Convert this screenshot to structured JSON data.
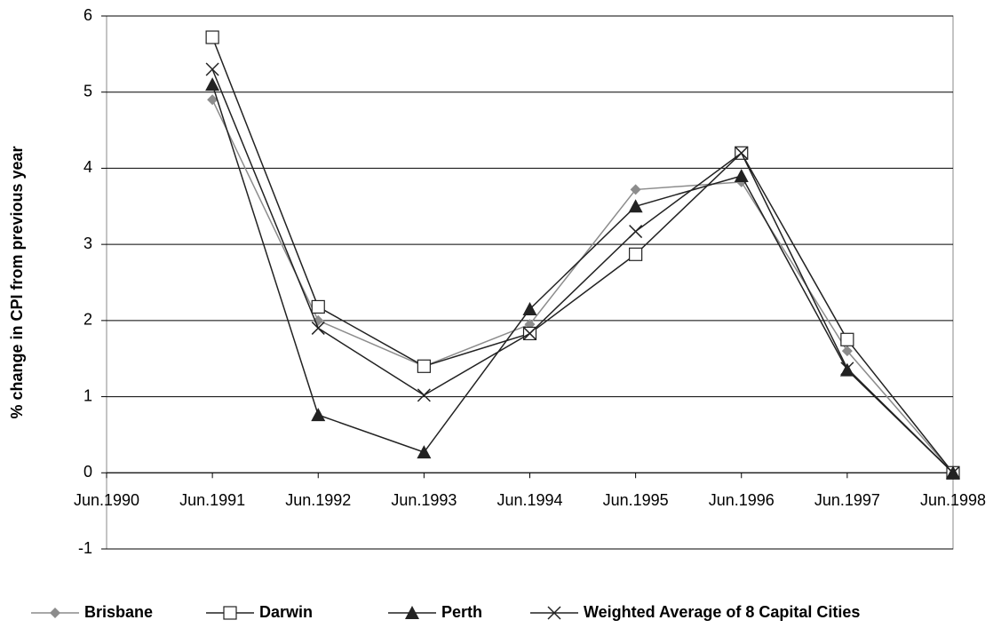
{
  "chart_data": {
    "type": "line",
    "ylabel": "% change in CPI from previous year",
    "categories": [
      "Jun.1990",
      "Jun.1991",
      "Jun.1992",
      "Jun.1993",
      "Jun.1994",
      "Jun.1995",
      "Jun.1996",
      "Jun.1997",
      "Jun.1998"
    ],
    "ylim": [
      -1,
      6
    ],
    "yticks": [
      -1,
      0,
      1,
      2,
      3,
      4,
      5,
      6
    ],
    "grid": true,
    "series": [
      {
        "name": "Brisbane",
        "color": "#8c8c8c",
        "marker": "diamond",
        "values": [
          null,
          4.9,
          2.0,
          1.4,
          1.95,
          3.72,
          3.82,
          1.6,
          0
        ]
      },
      {
        "name": "Darwin",
        "color": "#222222",
        "marker": "square",
        "values": [
          null,
          5.72,
          2.18,
          1.4,
          1.83,
          2.87,
          4.2,
          1.75,
          0
        ]
      },
      {
        "name": "Perth",
        "color": "#222222",
        "marker": "triangle",
        "values": [
          null,
          5.1,
          0.76,
          0.27,
          2.15,
          3.5,
          3.9,
          1.35,
          0
        ]
      },
      {
        "name": "Weighted Average of 8 Capital Cities",
        "color": "#222222",
        "marker": "x",
        "values": [
          null,
          5.3,
          1.9,
          1.02,
          1.83,
          3.17,
          4.2,
          1.37,
          0
        ]
      }
    ]
  }
}
